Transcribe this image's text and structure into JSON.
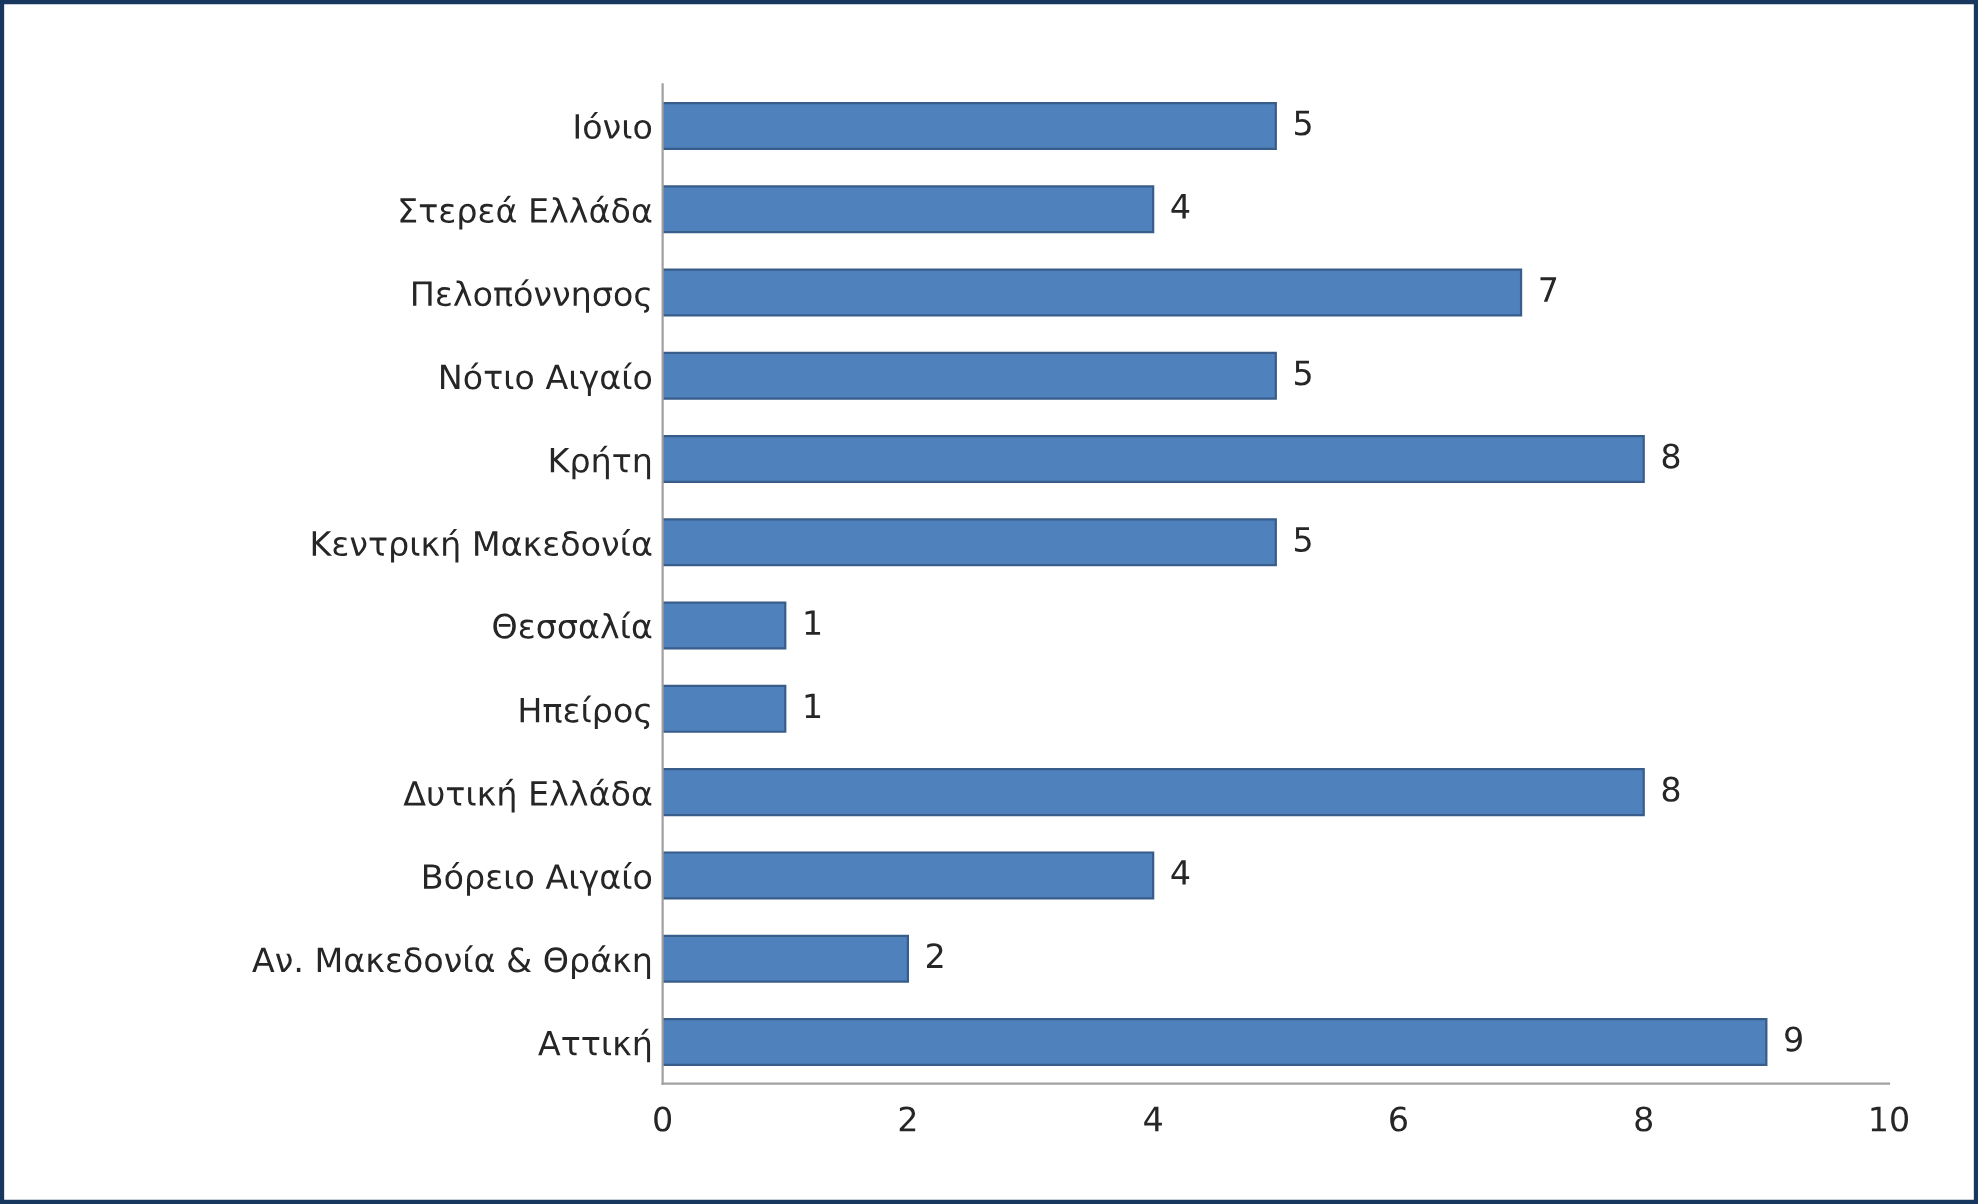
{
  "chart_data": {
    "type": "bar",
    "orientation": "horizontal",
    "categories": [
      "Ιόνιο",
      "Στερεά Ελλάδα",
      "Πελοπόννησος",
      "Νότιο Αιγαίο",
      "Κρήτη",
      "Κεντρική Μακεδονία",
      "Θεσσαλία",
      "Ηπείρος",
      "Δυτική Ελλάδα",
      "Βόρειο Αιγαίο",
      "Αν. Μακεδονία & Θράκη",
      "Αττική"
    ],
    "values": [
      5,
      4,
      7,
      5,
      8,
      5,
      1,
      1,
      8,
      4,
      2,
      9
    ],
    "color": "#4f81bd",
    "xlim": [
      0,
      10
    ],
    "xticks": [
      0,
      2,
      4,
      6,
      8,
      10
    ],
    "data_labels": true,
    "grid": false,
    "legend": false
  }
}
